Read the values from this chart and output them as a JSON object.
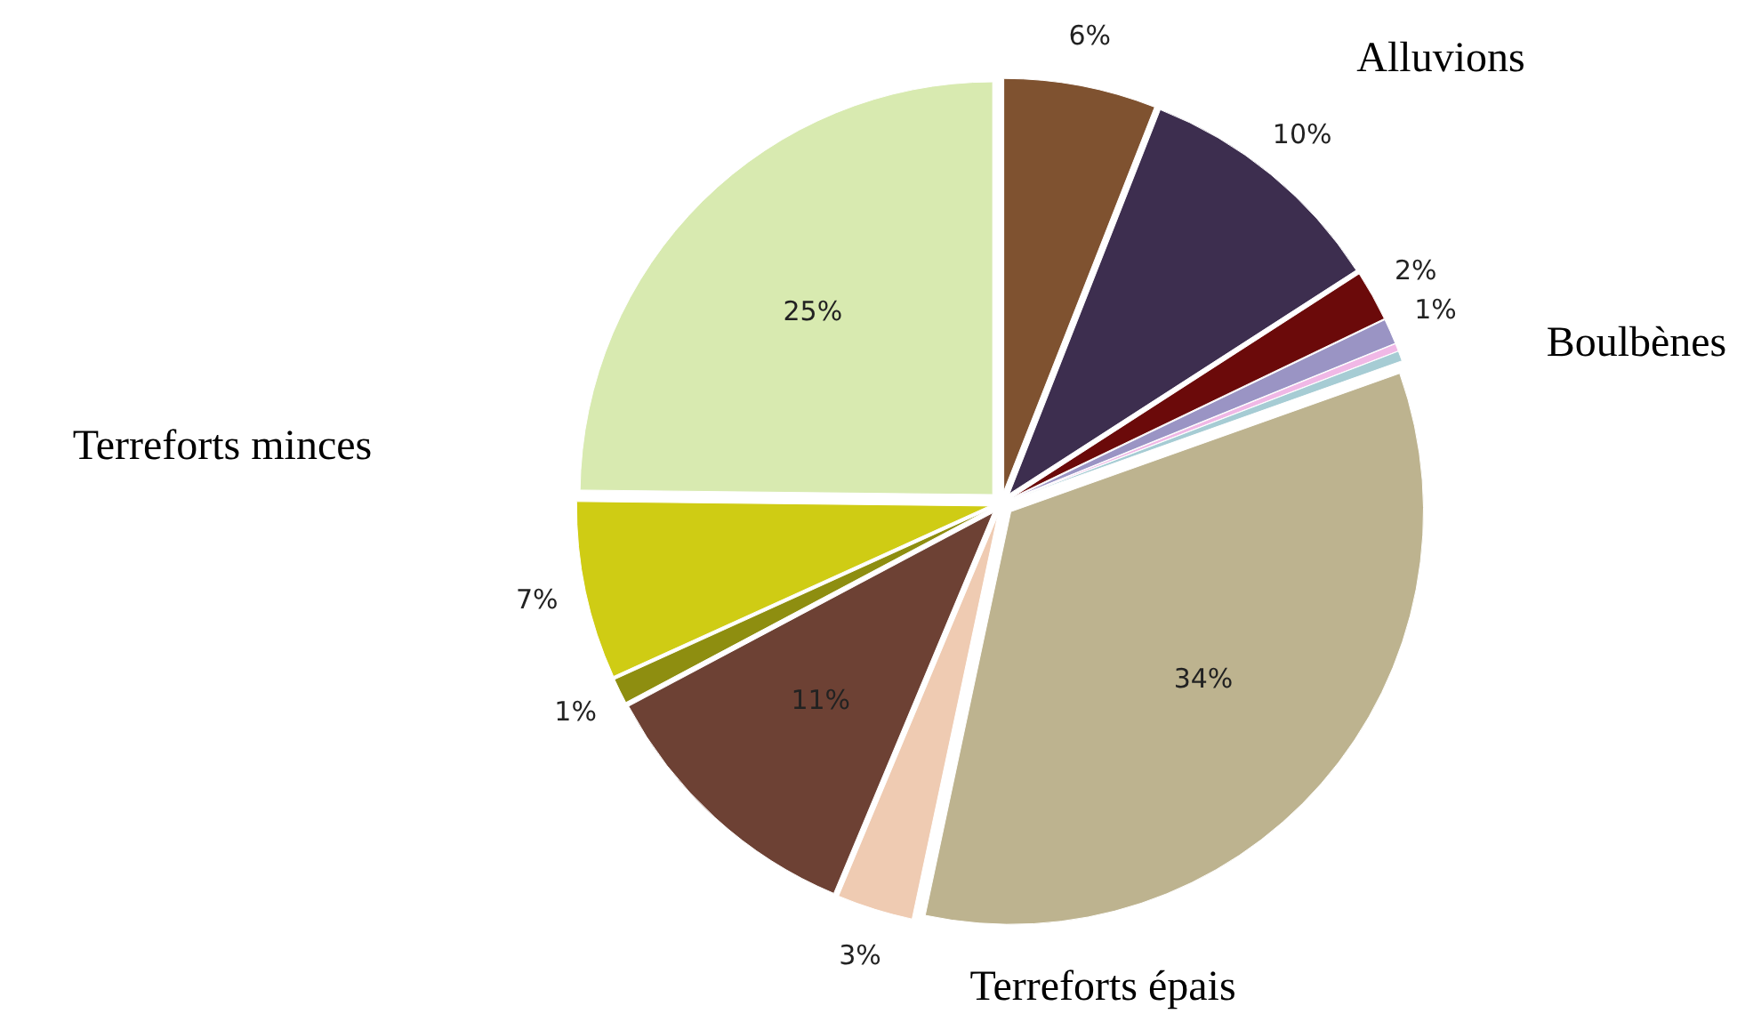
{
  "chart_data": {
    "type": "pie",
    "categories": [
      null,
      null,
      null,
      null,
      null,
      null,
      null,
      null,
      null,
      null,
      null,
      null
    ],
    "values": [
      6,
      10,
      2,
      1,
      0.3,
      0.4,
      34,
      3,
      11,
      1,
      7,
      25
    ],
    "value_labels": [
      "6%",
      "10%",
      "2%",
      "1%",
      null,
      null,
      "34%",
      "3%",
      "11%",
      "1%",
      "7%",
      "25%"
    ],
    "colors": [
      "#7f5230",
      "#3d2e4f",
      "#6b0a0a",
      "#9a94c4",
      "#f0b8e6",
      "#a6ccd4",
      "#bdb38f",
      "#efcbb2",
      "#6d4134",
      "#8e8e10",
      "#cfcc14",
      "#d8eab0"
    ],
    "annotations": [
      "Alluvions",
      "Boulbènes",
      "Terreforts minces",
      "Terreforts épais"
    ]
  }
}
